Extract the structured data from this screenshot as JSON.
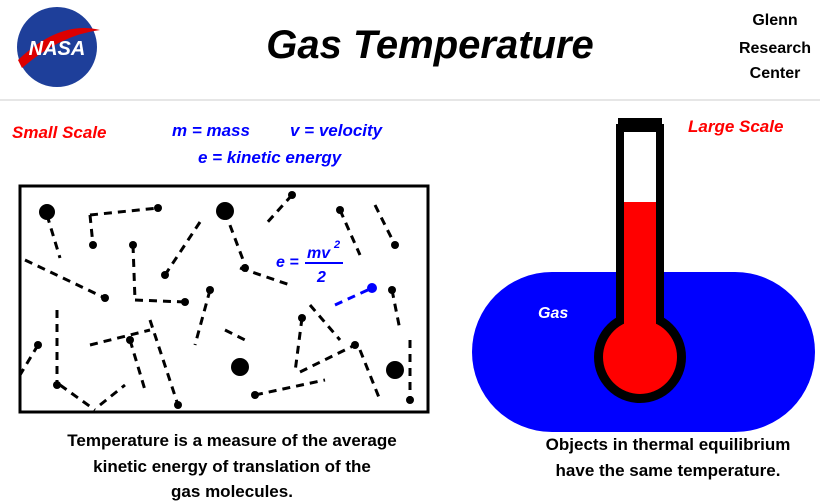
{
  "header": {
    "logo": "NASA",
    "title": "Gas Temperature",
    "center": [
      "Glenn",
      "Research",
      "Center"
    ]
  },
  "left": {
    "label": "Small Scale",
    "legend": [
      "m = mass",
      "v = velocity",
      "e = kinetic energy"
    ],
    "formula": {
      "lhs": "e =",
      "numerator": "mv",
      "exponent": "2",
      "denominator": "2"
    },
    "caption": [
      "Temperature is a measure of the average",
      "kinetic energy of translation of the",
      "gas molecules."
    ]
  },
  "right": {
    "label": "Large Scale",
    "gas": "Gas",
    "caption": [
      "Objects in thermal equilibrium",
      "have the same temperature."
    ]
  }
}
